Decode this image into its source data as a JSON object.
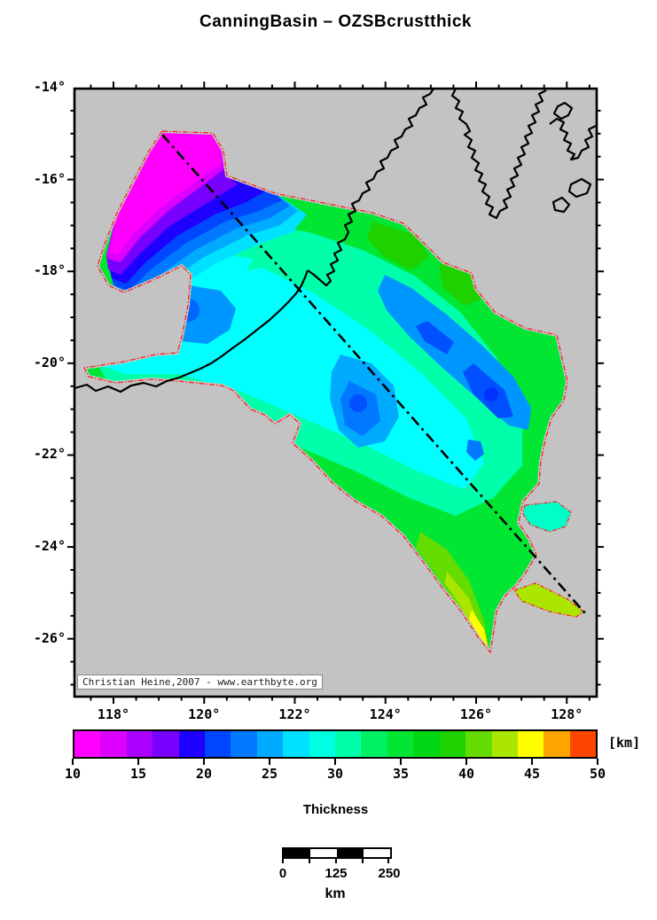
{
  "title": "CanningBasin – OZSBcrustthick",
  "map": {
    "attribution": "Christian Heine,2007 - www.earthbyte.org",
    "x_axis": {
      "tick_labels": [
        "118°",
        "120°",
        "122°",
        "124°",
        "126°",
        "128°"
      ],
      "tick_values": [
        118,
        120,
        122,
        124,
        126,
        128
      ],
      "minor_step": 0.5,
      "range": [
        117.14,
        128.66
      ]
    },
    "y_axis": {
      "tick_labels": [
        "-14°",
        "-16°",
        "-18°",
        "-20°",
        "-22°",
        "-24°",
        "-26°"
      ],
      "tick_values": [
        -14,
        -16,
        -18,
        -20,
        -22,
        -24,
        -26
      ],
      "minor_step": 0.5,
      "range": [
        -14.02,
        -27.26
      ]
    },
    "features": {
      "basin_boundary_color": "#ff1f1f",
      "coastline_color": "#000000",
      "section_line_color": "#000000",
      "land_fill_color": "#c3c3c3"
    }
  },
  "colorbar": {
    "title": "Thickness",
    "unit": "[km]",
    "min": 10,
    "max": 50,
    "segment_step": 2,
    "tick_labels": [
      "10",
      "15",
      "20",
      "25",
      "30",
      "35",
      "40",
      "45",
      "50"
    ],
    "tick_values": [
      10,
      15,
      20,
      25,
      30,
      35,
      40,
      45,
      50
    ],
    "segment_colors": [
      "#ff00ff",
      "#dc00ff",
      "#aa00ff",
      "#7800ff",
      "#1e00ff",
      "#0046ff",
      "#0078ff",
      "#00aaff",
      "#00e1ff",
      "#00ffe1",
      "#00ffaa",
      "#00f064",
      "#00e632",
      "#00d714",
      "#1ed200",
      "#64dc00",
      "#aae600",
      "#ffff00",
      "#ffa500",
      "#ff4600"
    ]
  },
  "scalebar": {
    "tick_labels": [
      "0",
      "125",
      "250"
    ],
    "unit_label": "km"
  }
}
